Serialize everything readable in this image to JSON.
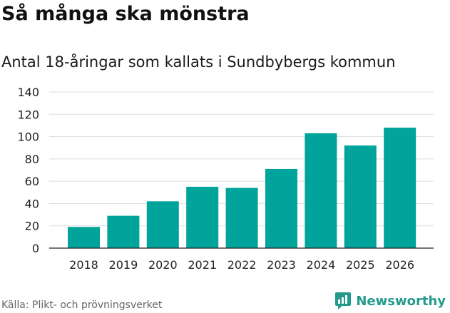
{
  "title": "Så många ska mönstra",
  "subtitle": "Antal 18-åringar som kallats i Sundbybergs kommun",
  "source": "Källa: Plikt- och prövningsverket",
  "brand": "Newsworthy",
  "colors": {
    "bar": "#00a49a",
    "grid": "#dddddd",
    "brand": "#239b8c"
  },
  "chart_data": {
    "type": "bar",
    "title": "Så många ska mönstra",
    "subtitle": "Antal 18-åringar som kallats i Sundbybergs kommun",
    "xlabel": "",
    "ylabel": "",
    "categories": [
      "2018",
      "2019",
      "2020",
      "2021",
      "2022",
      "2023",
      "2024",
      "2025",
      "2026"
    ],
    "values": [
      19,
      29,
      42,
      55,
      54,
      71,
      103,
      92,
      108
    ],
    "ylim": [
      0,
      140
    ],
    "yticks": [
      0,
      20,
      40,
      60,
      80,
      100,
      120,
      140
    ],
    "grid": true
  }
}
